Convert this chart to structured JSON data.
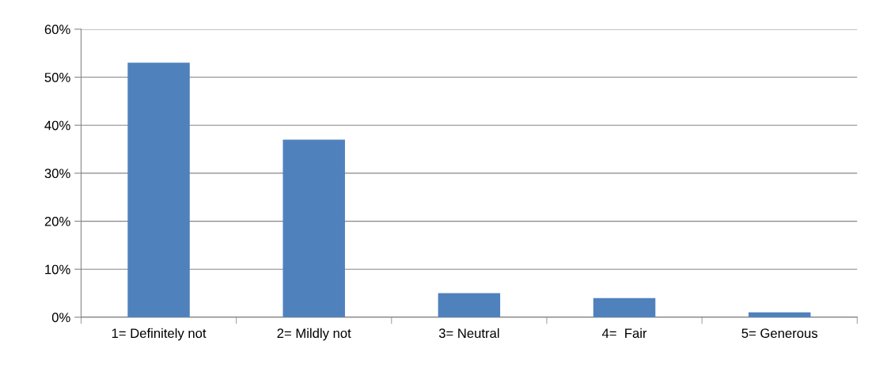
{
  "chart_data": {
    "type": "bar",
    "categories": [
      "1= Definitely not",
      "2= Mildly not",
      "3= Neutral",
      "4=  Fair",
      "5= Generous"
    ],
    "values": [
      53,
      37,
      5,
      4,
      1
    ],
    "color": "#4f81bd",
    "ylim": [
      0,
      60
    ],
    "yticks": [
      {
        "value": 0,
        "label": "0%"
      },
      {
        "value": 10,
        "label": "10%"
      },
      {
        "value": 20,
        "label": "20%"
      },
      {
        "value": 30,
        "label": "30%"
      },
      {
        "value": 40,
        "label": "40%"
      },
      {
        "value": 50,
        "label": "50%"
      },
      {
        "value": 60,
        "label": "60%"
      }
    ],
    "grid": "y"
  }
}
